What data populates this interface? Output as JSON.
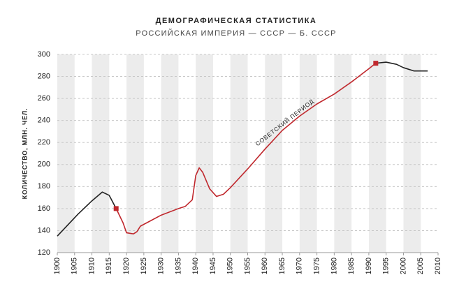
{
  "chart_data": {
    "type": "line",
    "title": "ДЕМОГРАФИЧЕСКАЯ СТАТИСТИКА",
    "subtitle": "РОССИЙСКАЯ ИМПЕРИЯ — СССР — Б. СССР",
    "y_label": "КОЛИЧЕСТВО, МЛН. ЧЕЛ.",
    "annotation": "СОВЕТСКИЙ ПЕРИОД",
    "xlim": [
      1900,
      2010
    ],
    "xticks": [
      1900,
      1905,
      1910,
      1915,
      1920,
      1925,
      1930,
      1935,
      1940,
      1945,
      1950,
      1955,
      1960,
      1965,
      1970,
      1975,
      1980,
      1985,
      1990,
      1995,
      2000,
      2005,
      2010
    ],
    "ylim": [
      120,
      300
    ],
    "yticks": [
      120,
      140,
      160,
      180,
      200,
      220,
      240,
      260,
      280,
      300
    ],
    "grid": true,
    "stripes": true,
    "series": [
      {
        "color": "#222222",
        "x": [
          1900,
          1903,
          1906,
          1910,
          1913,
          1915,
          1917
        ],
        "values": [
          135,
          145,
          155,
          167,
          175,
          172,
          160
        ]
      },
      {
        "color": "#c0282d",
        "x": [
          1917,
          1919,
          1920,
          1922,
          1923,
          1924,
          1927,
          1930,
          1935,
          1937,
          1939,
          1940,
          1941,
          1942,
          1944,
          1946,
          1948,
          1950,
          1955,
          1960,
          1965,
          1970,
          1975,
          1980,
          1985,
          1990,
          1992
        ],
        "values": [
          160,
          147,
          138,
          137,
          139,
          144,
          149,
          154,
          160,
          162,
          168,
          190,
          197,
          193,
          178,
          171,
          173,
          179,
          196,
          214,
          231,
          244,
          255,
          264,
          275,
          287,
          292
        ]
      },
      {
        "color": "#222222",
        "x": [
          1992,
          1995,
          1998,
          2000,
          2003,
          2007
        ],
        "values": [
          292,
          293,
          291,
          288,
          285,
          285
        ]
      }
    ],
    "points": {
      "color": "#c0282d",
      "x": [
        1917,
        1992
      ],
      "values": [
        160,
        292
      ]
    }
  }
}
